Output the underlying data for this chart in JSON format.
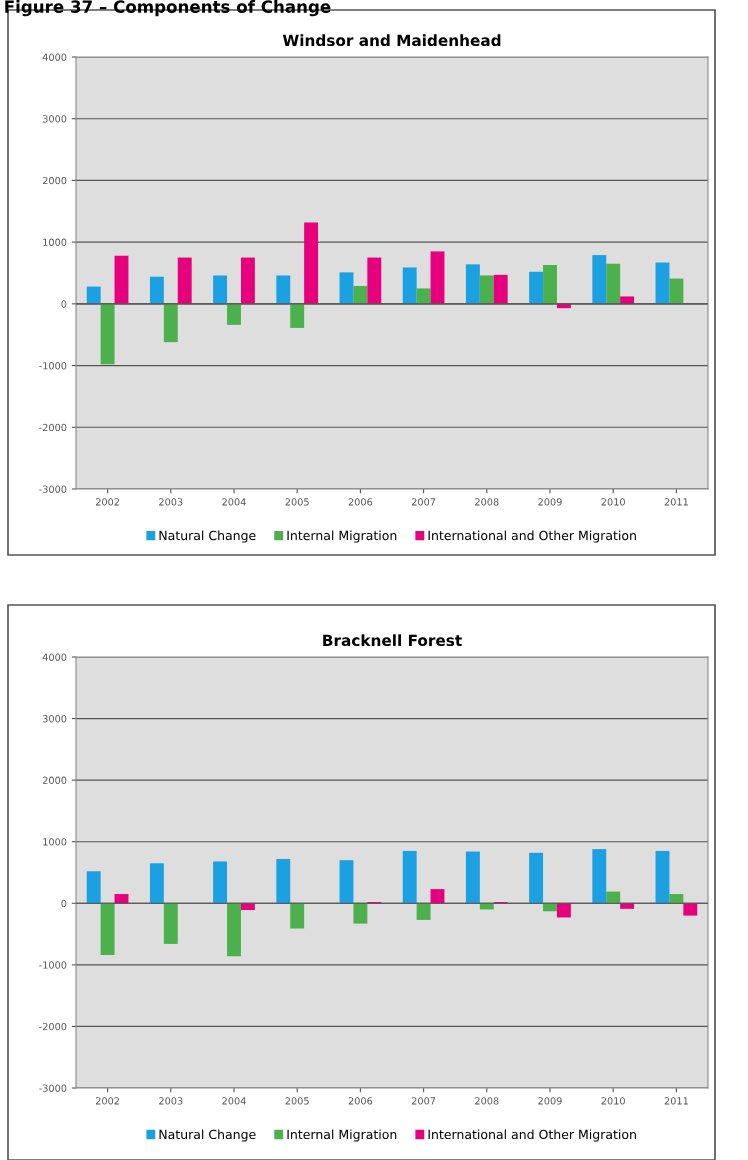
{
  "chart_data": [
    {
      "type": "bar",
      "title": "Windsor and Maidenhead",
      "annotations": [
        "Figure 37 – Components of Change"
      ],
      "categories": [
        "2002",
        "2003",
        "2004",
        "2005",
        "2006",
        "2007",
        "2008",
        "2009",
        "2010",
        "2011"
      ],
      "series": [
        {
          "name": "Natural Change",
          "color": "#1ba1e2",
          "values": [
            280,
            440,
            460,
            460,
            510,
            590,
            640,
            520,
            790,
            670
          ]
        },
        {
          "name": "Internal Migration",
          "color": "#4cb04c",
          "values": [
            -980,
            -620,
            -340,
            -390,
            290,
            250,
            460,
            630,
            650,
            410
          ]
        },
        {
          "name": "International and Other Migration",
          "color": "#e6007e",
          "values": [
            780,
            750,
            750,
            1320,
            750,
            850,
            470,
            -70,
            120,
            null
          ]
        }
      ],
      "ylim": [
        -3000,
        4000
      ],
      "yticks": [
        -3000,
        -2000,
        -1000,
        0,
        1000,
        2000,
        3000,
        4000
      ],
      "grid": "y",
      "legend": "bottom"
    },
    {
      "type": "bar",
      "title": "Bracknell Forest",
      "categories": [
        "2002",
        "2003",
        "2004",
        "2005",
        "2006",
        "2007",
        "2008",
        "2009",
        "2010",
        "2011"
      ],
      "series": [
        {
          "name": "Natural Change",
          "color": "#1ba1e2",
          "values": [
            520,
            650,
            680,
            720,
            700,
            850,
            840,
            820,
            880,
            850
          ]
        },
        {
          "name": "Internal Migration",
          "color": "#4cb04c",
          "values": [
            -840,
            -660,
            -860,
            -410,
            -330,
            -270,
            -100,
            -130,
            190,
            150
          ]
        },
        {
          "name": "International and Other Migration",
          "color": "#e6007e",
          "values": [
            150,
            null,
            -110,
            null,
            20,
            230,
            20,
            -230,
            -90,
            -200
          ]
        }
      ],
      "ylim": [
        -3000,
        4000
      ],
      "yticks": [
        -3000,
        -2000,
        -1000,
        0,
        1000,
        2000,
        3000,
        4000
      ],
      "grid": "y",
      "legend": "bottom"
    }
  ]
}
